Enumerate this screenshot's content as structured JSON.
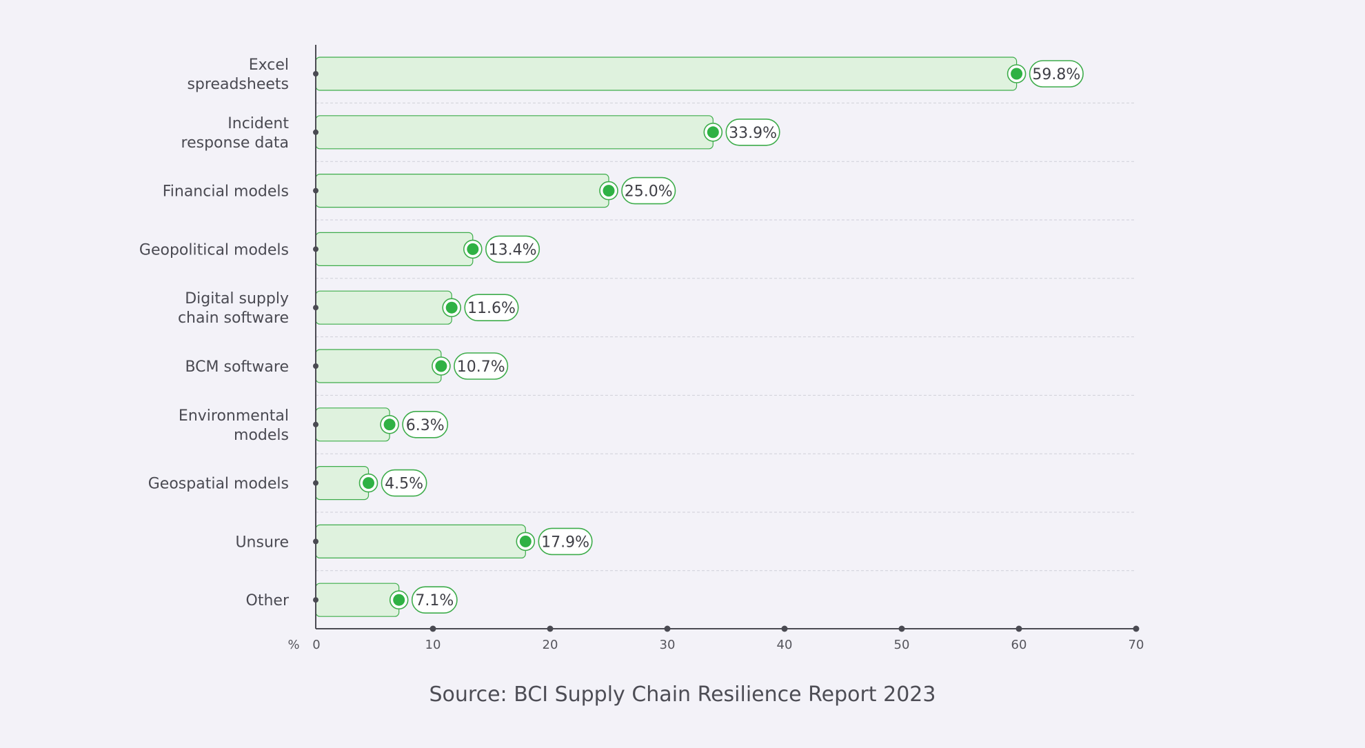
{
  "chart_data": {
    "type": "bar",
    "orientation": "horizontal",
    "categories": [
      [
        "Excel",
        "spreadsheets"
      ],
      [
        "Incident",
        "response data"
      ],
      [
        "Financial models"
      ],
      [
        "Geopolitical models"
      ],
      [
        "Digital supply",
        "chain software"
      ],
      [
        "BCM software"
      ],
      [
        "Environmental",
        "models"
      ],
      [
        "Geospatial models"
      ],
      [
        "Unsure"
      ],
      [
        "Other"
      ]
    ],
    "values": [
      59.8,
      33.9,
      25.0,
      13.4,
      11.6,
      10.7,
      6.3,
      4.5,
      17.9,
      7.1
    ],
    "value_labels": [
      "59.8%",
      "33.9%",
      "25.0%",
      "13.4%",
      "11.6%",
      "10.7%",
      "6.3%",
      "4.5%",
      "17.9%",
      "7.1%"
    ],
    "xlabel": "%",
    "xlim": [
      0,
      70
    ],
    "xticks": [
      0,
      10,
      20,
      30,
      40,
      50,
      60,
      70
    ],
    "grid": true,
    "legend": "none"
  },
  "source": "Source: BCI Supply Chain Resilience Report 2023",
  "colors": {
    "background": "#f3f2f8",
    "bar_fill": "#dff2de",
    "bar_stroke": "#3dac4a",
    "marker": "#2fb144",
    "axis": "#4a4a52",
    "grid": "#cfcfd8",
    "text": "#4a4a52"
  }
}
